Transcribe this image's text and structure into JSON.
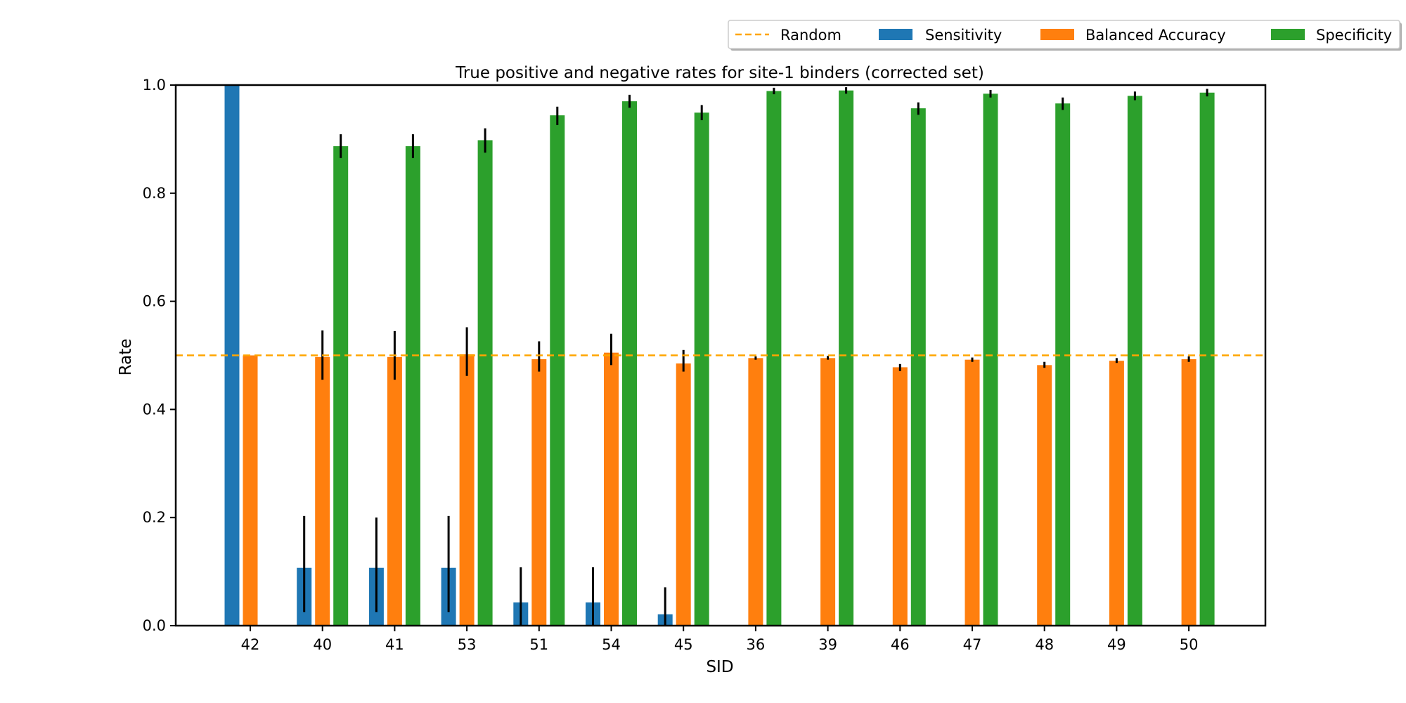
{
  "chart_data": {
    "type": "bar",
    "title": "True positive and negative rates for site-1 binders (corrected set)",
    "xlabel": "SID",
    "ylabel": "Rate",
    "ylim": [
      0,
      1.0
    ],
    "yticks": [
      "0.0",
      "0.2",
      "0.4",
      "0.6",
      "0.8",
      "1.0"
    ],
    "categories": [
      "42",
      "40",
      "41",
      "53",
      "51",
      "54",
      "45",
      "36",
      "39",
      "46",
      "47",
      "48",
      "49",
      "50"
    ],
    "series": [
      {
        "name": "Sensitivity",
        "color": "#1f77b4",
        "values": [
          1.0,
          0.107,
          0.107,
          0.107,
          0.043,
          0.043,
          0.021,
          0,
          0,
          0,
          0,
          0,
          0,
          0
        ],
        "err_low": [
          1.0,
          0.025,
          0.025,
          0.025,
          0.0,
          0.0,
          0.0,
          null,
          null,
          null,
          null,
          null,
          null,
          null
        ],
        "err_high": [
          1.0,
          0.203,
          0.2,
          0.203,
          0.108,
          0.108,
          0.071,
          null,
          null,
          null,
          null,
          null,
          null,
          null
        ]
      },
      {
        "name": "Balanced Accuracy",
        "color": "#ff7f0e",
        "values": [
          0.5,
          0.497,
          0.497,
          0.502,
          0.493,
          0.505,
          0.485,
          0.495,
          0.495,
          0.478,
          0.492,
          0.482,
          0.49,
          0.493
        ],
        "err_low": [
          0.5,
          0.455,
          0.455,
          0.462,
          0.47,
          0.482,
          0.47,
          0.492,
          0.492,
          0.471,
          0.488,
          0.477,
          0.486,
          0.488
        ],
        "err_high": [
          0.5,
          0.546,
          0.545,
          0.552,
          0.526,
          0.54,
          0.51,
          0.498,
          0.499,
          0.484,
          0.496,
          0.488,
          0.495,
          0.498
        ]
      },
      {
        "name": "Specificity",
        "color": "#2ca02c",
        "values": [
          0,
          0.887,
          0.887,
          0.898,
          0.944,
          0.97,
          0.949,
          0.989,
          0.99,
          0.957,
          0.984,
          0.966,
          0.98,
          0.986
        ],
        "err_low": [
          null,
          0.865,
          0.865,
          0.875,
          0.926,
          0.958,
          0.935,
          0.983,
          0.984,
          0.945,
          0.977,
          0.954,
          0.972,
          0.979
        ],
        "err_high": [
          null,
          0.909,
          0.909,
          0.92,
          0.96,
          0.982,
          0.963,
          0.995,
          0.996,
          0.968,
          0.991,
          0.977,
          0.988,
          0.993
        ]
      }
    ],
    "reference_line": {
      "name": "Random",
      "y": 0.5,
      "color": "#ffa500",
      "style": "dashed"
    },
    "legend": {
      "placement": "top-right, above plot",
      "entries": [
        "Random",
        "Sensitivity",
        "Balanced Accuracy",
        "Specificity"
      ]
    },
    "grid": false
  }
}
